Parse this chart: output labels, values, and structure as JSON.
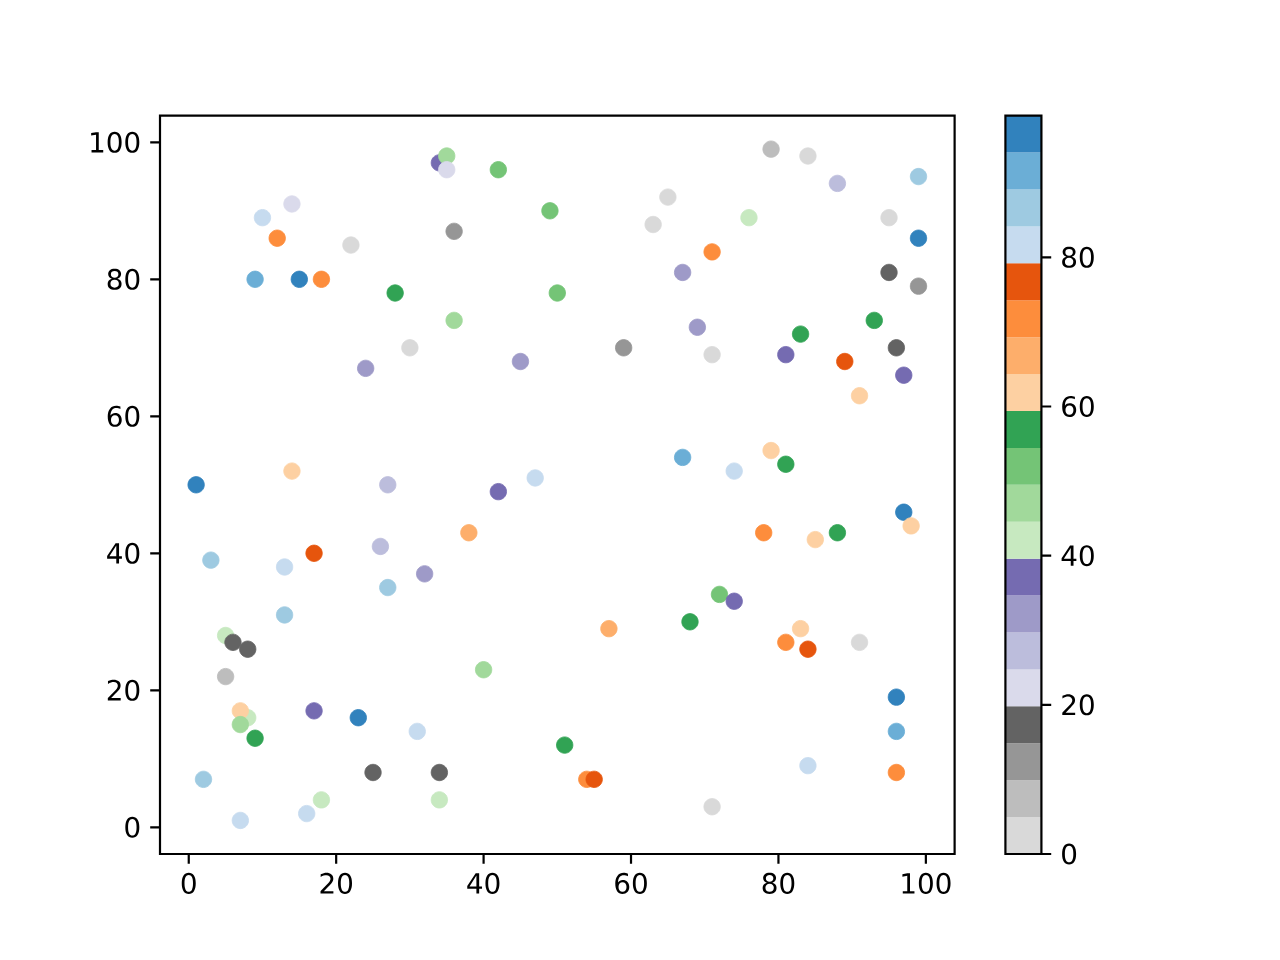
{
  "chart_data": {
    "type": "scatter",
    "marker": "circle",
    "x": [
      34,
      35,
      35,
      42,
      10,
      14,
      12,
      22,
      36,
      9,
      15,
      18,
      28,
      36,
      30,
      24,
      45,
      1,
      14,
      27,
      42,
      47,
      79,
      84,
      88,
      99,
      49,
      65,
      63,
      76,
      95,
      99,
      71,
      67,
      95,
      99,
      50,
      69,
      93,
      83,
      59,
      71,
      81,
      89,
      96,
      97,
      91,
      67,
      74,
      79,
      81,
      38,
      3,
      17,
      13,
      26,
      32,
      27,
      13,
      5,
      6,
      8,
      5,
      40,
      8,
      7,
      7,
      9,
      17,
      23,
      31,
      2,
      25,
      34,
      7,
      16,
      18,
      34,
      97,
      98,
      78,
      85,
      88,
      72,
      74,
      57,
      68,
      83,
      81,
      84,
      91,
      96,
      96,
      51,
      54,
      55,
      84,
      96,
      71
    ],
    "values": [
      97,
      98,
      96,
      96,
      89,
      91,
      86,
      85,
      87,
      80,
      80,
      80,
      78,
      74,
      70,
      67,
      68,
      50,
      52,
      50,
      49,
      51,
      99,
      98,
      94,
      95,
      90,
      92,
      88,
      89,
      89,
      86,
      84,
      81,
      81,
      79,
      78,
      73,
      74,
      72,
      70,
      69,
      69,
      68,
      70,
      66,
      63,
      54,
      52,
      55,
      53,
      43,
      39,
      40,
      38,
      41,
      37,
      35,
      31,
      28,
      27,
      26,
      22,
      23,
      16,
      17,
      15,
      13,
      17,
      16,
      14,
      7,
      8,
      8,
      1,
      2,
      4,
      4,
      46,
      44,
      43,
      42,
      43,
      34,
      33,
      29,
      30,
      29,
      27,
      26,
      27,
      19,
      14,
      12,
      7,
      7,
      9,
      8,
      3
    ],
    "cvalues": [
      37,
      47,
      22,
      52,
      82,
      22,
      72,
      2,
      12,
      92,
      97,
      72,
      57,
      47,
      2,
      32,
      32,
      97,
      62,
      27,
      37,
      82,
      7,
      2,
      27,
      87,
      52,
      2,
      2,
      42,
      2,
      97,
      72,
      32,
      17,
      12,
      52,
      32,
      57,
      57,
      12,
      2,
      37,
      77,
      17,
      37,
      62,
      92,
      82,
      62,
      57,
      67,
      87,
      77,
      82,
      27,
      32,
      87,
      87,
      42,
      17,
      17,
      7,
      47,
      42,
      62,
      47,
      57,
      37,
      97,
      82,
      87,
      17,
      17,
      82,
      82,
      42,
      42,
      97,
      62,
      72,
      62,
      57,
      52,
      37,
      67,
      57,
      62,
      72,
      77,
      2,
      97,
      92,
      57,
      72,
      77,
      82,
      72,
      2
    ],
    "clim": [
      0,
      99
    ],
    "cticks": [
      0,
      20,
      40,
      60,
      80
    ],
    "xlim": [
      -3.9,
      103.9
    ],
    "ylim": [
      -3.9,
      103.9
    ],
    "xticks": [
      0,
      20,
      40,
      60,
      80,
      100
    ],
    "yticks": [
      0,
      20,
      40,
      60,
      80,
      100
    ]
  }
}
